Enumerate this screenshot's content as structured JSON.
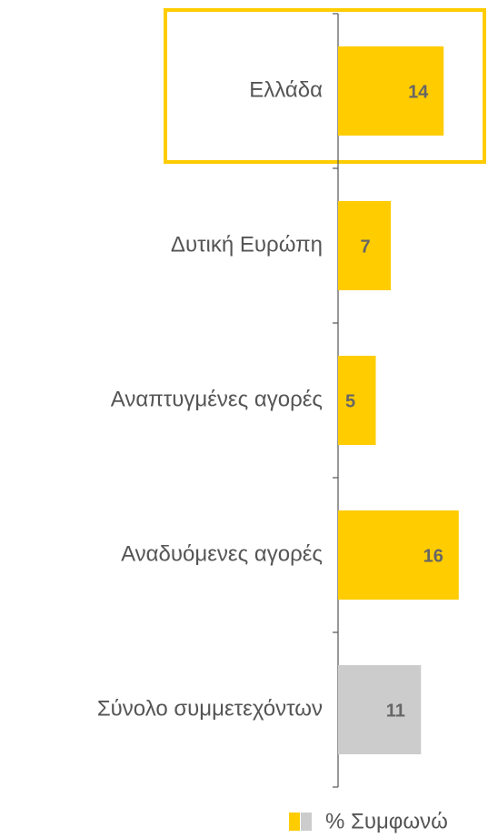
{
  "chart_data": {
    "type": "barh",
    "categories": [
      "Ελλάδα",
      "Δυτική Ευρώπη",
      "Αναπτυγμένες αγορές",
      "Αναδυόμενες αγορές",
      "Σύνολο συμμετεχόντων"
    ],
    "values": [
      14,
      7,
      5,
      16,
      11
    ],
    "colors": [
      "#ffcc00",
      "#ffcc00",
      "#ffcc00",
      "#ffcc00",
      "#cccccc"
    ],
    "xlim": [
      0,
      20
    ],
    "legend": {
      "name": "% Συμφωνώ",
      "colors": [
        "#ffcc00",
        "#cccccc"
      ]
    }
  }
}
